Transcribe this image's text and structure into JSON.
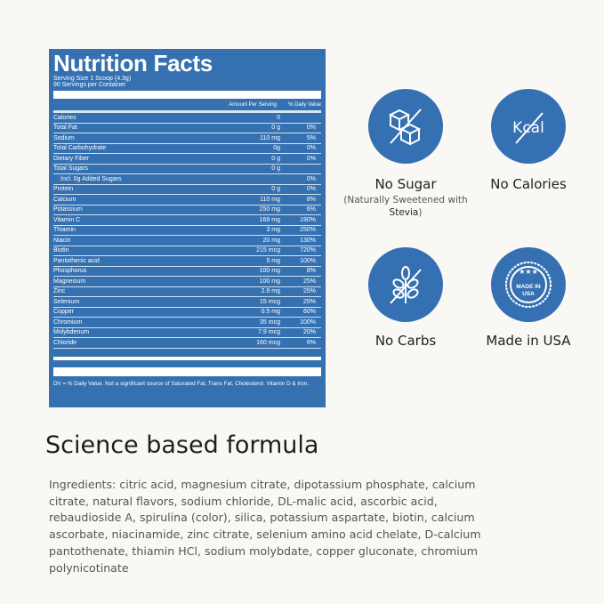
{
  "nutrition": {
    "title": "Nutrition Facts",
    "serving_size": "Serving Size 1 Scoop (4.3g)",
    "servings": "90 Servings per Container",
    "col_amount": "Amount Per Serving",
    "col_dv": "% Daily Value",
    "rows": [
      {
        "name": "Calories",
        "amount": "0",
        "dv": ""
      },
      {
        "name": "Total Fat",
        "amount": "0 g",
        "dv": "0%"
      },
      {
        "name": "Sodium",
        "amount": "110 mg",
        "dv": "5%"
      },
      {
        "name": "Total Carbohydrate",
        "amount": "0g",
        "dv": "0%"
      },
      {
        "name": "Dietary Fiber",
        "amount": "0 g",
        "dv": "0%"
      },
      {
        "name": "Total Sugars",
        "amount": "0 g",
        "dv": ""
      },
      {
        "name": "Incl. 0g Added Sugars",
        "amount": "",
        "dv": "0%"
      },
      {
        "name": "Protein",
        "amount": "0 g",
        "dv": "0%"
      },
      {
        "name": "Calcium",
        "amount": "110 mg",
        "dv": "8%"
      },
      {
        "name": "Potassium",
        "amount": "250 mg",
        "dv": "6%"
      },
      {
        "name": "Vitamin C",
        "amount": "169 mg",
        "dv": "190%"
      },
      {
        "name": "Thiamin",
        "amount": "3 mg",
        "dv": "250%"
      },
      {
        "name": "Niacin",
        "amount": "20 mg",
        "dv": "130%"
      },
      {
        "name": "Biotin",
        "amount": "215 mcg",
        "dv": "720%"
      },
      {
        "name": "Pantothenic acid",
        "amount": "5 mg",
        "dv": "100%"
      },
      {
        "name": "Phosphorus",
        "amount": "100 mg",
        "dv": "8%"
      },
      {
        "name": "Magnesium",
        "amount": "100 mg",
        "dv": "25%"
      },
      {
        "name": "Zinc",
        "amount": "2.9 mg",
        "dv": "25%"
      },
      {
        "name": "Selenium",
        "amount": "15 mcg",
        "dv": "25%"
      },
      {
        "name": "Copper",
        "amount": "0.5 mg",
        "dv": "60%"
      },
      {
        "name": "Chromium",
        "amount": "35 mcg",
        "dv": "100%"
      },
      {
        "name": "Molybdenum",
        "amount": "7.9 mcg",
        "dv": "20%"
      },
      {
        "name": "Chloride",
        "amount": "160 mcg",
        "dv": "6%"
      }
    ],
    "footnote": "DV = % Daily Value. Not a significant source of Saturated Fat, Trans Fat, Cholesterol. Vitamin D & Iron."
  },
  "badges": [
    {
      "icon": "sugar-cube-crossed-icon",
      "label": "No Sugar",
      "sub_pre": "(Naturally Sweetened with ",
      "sub_bold": "Stevia",
      "sub_post": ")"
    },
    {
      "icon": "kcal-crossed-icon",
      "label": "No Calories",
      "icon_text": "Kcal"
    },
    {
      "icon": "wheat-crossed-icon",
      "label": "No Carbs"
    },
    {
      "icon": "made-in-usa-seal-icon",
      "label": "Made in USA",
      "icon_text": "MADE IN USA"
    }
  ],
  "colors": {
    "brand_blue": "#3470b2",
    "background": "#faf8f5"
  },
  "heading": "Science based formula",
  "ingredients": "Ingredients: citric acid, magnesium citrate, dipotassium phosphate, calcium citrate, natural flavors, sodium chloride, DL-malic acid, ascorbic acid, rebaudioside A, spirulina (color), silica, potassium aspartate, biotin, calcium ascorbate, niacinamide, zinc citrate, selenium amino acid chelate, D-calcium pantothenate, thiamin HCl, sodium molybdate, copper gluconate, chromium polynicotinate"
}
